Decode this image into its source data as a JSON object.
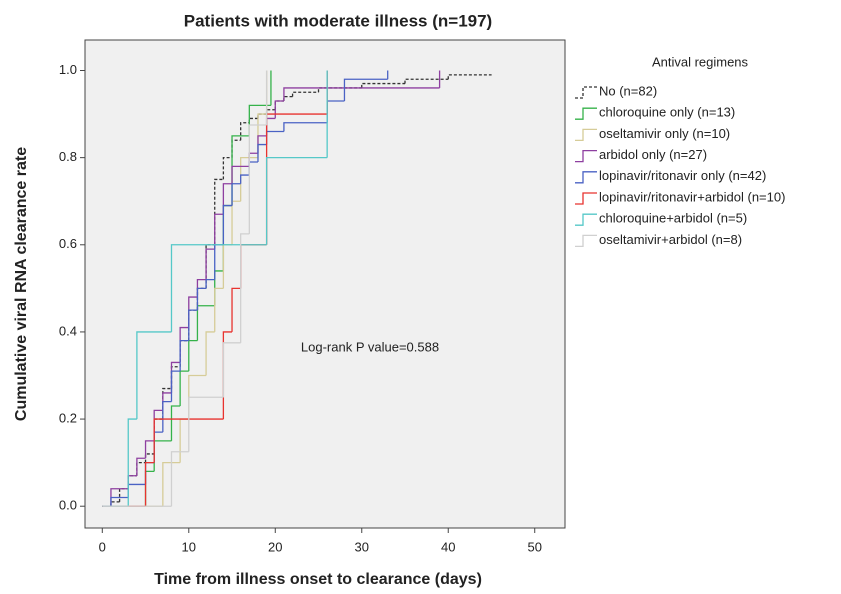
{
  "chart_data": {
    "type": "step",
    "title": "Patients with moderate illness (n=197)",
    "x_label": "Time from illness onset to clearance (days)",
    "y_label": "Cumulative viral RNA clearance rate",
    "legend_title": "Antival regimens",
    "annotation": "Log-rank P value=0.588",
    "legend_position": "right",
    "xlim": [
      -2,
      53.5
    ],
    "ylim": [
      -0.05,
      1.07
    ],
    "xticks": [
      0,
      10,
      20,
      30,
      40,
      50
    ],
    "yticks": [
      {
        "value": 0,
        "label": "0.0"
      },
      0.2,
      0.4,
      0.6,
      0.8,
      {
        "value": 1,
        "label": "1.0"
      }
    ],
    "series": [
      {
        "name": "No (n=82)",
        "color": "#333333",
        "dashed": true,
        "x": [
          0,
          1,
          2,
          3,
          4,
          5,
          6,
          7,
          8,
          9,
          10,
          11,
          12,
          13,
          14,
          15,
          16,
          17,
          18,
          19,
          20,
          21,
          22,
          25,
          30,
          35,
          40,
          45
        ],
        "values": [
          0,
          0.01,
          0.04,
          0.07,
          0.1,
          0.12,
          0.2,
          0.27,
          0.32,
          0.38,
          0.45,
          0.5,
          0.6,
          0.75,
          0.8,
          0.84,
          0.88,
          0.89,
          0.9,
          0.91,
          0.93,
          0.94,
          0.95,
          0.96,
          0.97,
          0.98,
          0.99,
          0.99
        ]
      },
      {
        "name": "chloroquine only (n=13)",
        "color": "#35b24a",
        "x": [
          0,
          5,
          6,
          8,
          9,
          10,
          11,
          13,
          14,
          15,
          17,
          19.5
        ],
        "values": [
          0,
          0.08,
          0.15,
          0.23,
          0.31,
          0.38,
          0.46,
          0.54,
          0.69,
          0.85,
          0.92,
          1.0
        ]
      },
      {
        "name": "oseltamivir only (n=10)",
        "color": "#d6cc98",
        "x": [
          0,
          7,
          9,
          10,
          12,
          13,
          14,
          15,
          16,
          18,
          19
        ],
        "values": [
          0,
          0.1,
          0.2,
          0.3,
          0.4,
          0.5,
          0.6,
          0.7,
          0.8,
          0.9,
          1.0
        ]
      },
      {
        "name": "arbidol only (n=27)",
        "color": "#8e3fa0",
        "x": [
          0,
          1,
          3,
          4,
          5,
          6,
          7,
          8,
          9,
          10,
          11,
          12,
          13,
          14,
          15,
          17,
          18,
          19,
          20,
          21,
          39
        ],
        "values": [
          0,
          0.04,
          0.07,
          0.11,
          0.15,
          0.22,
          0.26,
          0.33,
          0.41,
          0.48,
          0.52,
          0.59,
          0.67,
          0.74,
          0.78,
          0.81,
          0.85,
          0.89,
          0.93,
          0.96,
          1.0
        ]
      },
      {
        "name": "lopinavir/ritonavir only (n=42)",
        "color": "#4a62c4",
        "x": [
          0,
          1,
          3,
          5,
          6,
          7,
          8,
          9,
          10,
          11,
          12,
          13,
          14,
          15,
          16,
          17,
          18,
          19,
          21,
          26,
          28,
          33
        ],
        "values": [
          0,
          0.02,
          0.05,
          0.1,
          0.17,
          0.24,
          0.31,
          0.38,
          0.45,
          0.5,
          0.52,
          0.6,
          0.69,
          0.74,
          0.76,
          0.79,
          0.83,
          0.86,
          0.88,
          0.93,
          0.98,
          1.0
        ]
      },
      {
        "name": "lopinavir/ritonavir+arbidol (n=10)",
        "color": "#e8332f",
        "x": [
          0,
          5,
          6,
          14,
          15,
          16,
          19,
          26
        ],
        "values": [
          0,
          0.1,
          0.2,
          0.4,
          0.5,
          0.6,
          0.9,
          1.0
        ]
      },
      {
        "name": "chloroquine+arbidol (n=5)",
        "color": "#55c8c8",
        "x": [
          0,
          3,
          4,
          8,
          19,
          26
        ],
        "values": [
          0,
          0.2,
          0.4,
          0.6,
          0.8,
          1.0
        ]
      },
      {
        "name": "oseltamivir+arbidol (n=8)",
        "color": "#d0d0d0",
        "x": [
          0,
          8,
          10,
          14,
          16,
          17,
          19
        ],
        "values": [
          0,
          0.125,
          0.25,
          0.375,
          0.625,
          0.875,
          1.0
        ]
      }
    ]
  }
}
